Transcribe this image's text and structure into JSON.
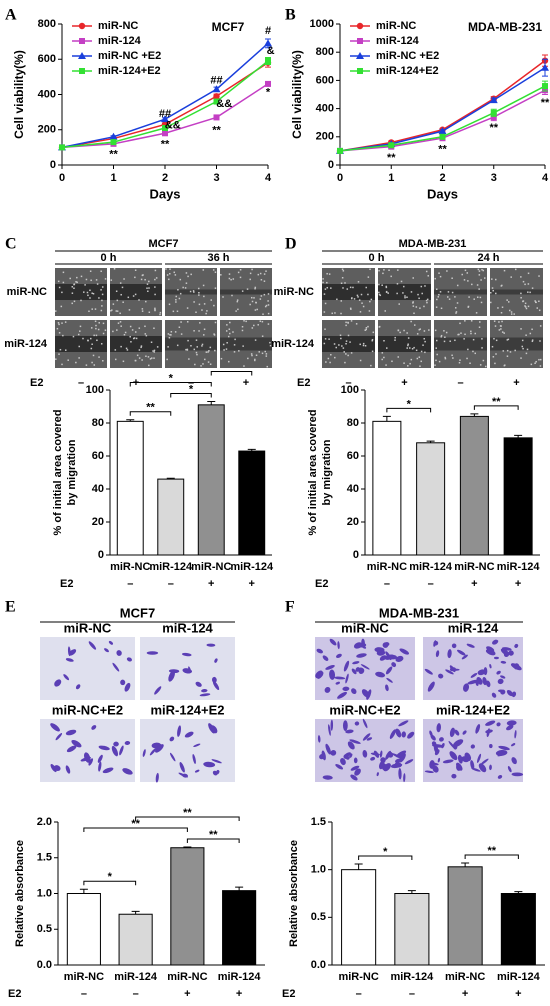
{
  "chart_data": [
    {
      "type": "line",
      "panel_label": "A",
      "title": "MCF7",
      "x_label": "Days",
      "y_label": "Cell viability(%)",
      "legend": "upper left",
      "x": [
        0,
        1,
        2,
        3,
        4
      ],
      "xlim": [
        0,
        4
      ],
      "xticks": [
        0,
        1,
        2,
        3,
        4
      ],
      "ylim": [
        0,
        800
      ],
      "yticks": [
        0,
        200,
        400,
        600,
        800
      ],
      "series": [
        {
          "name": "miR-NC",
          "color": "#e8262a",
          "marker": "circle",
          "values": [
            100,
            150,
            230,
            390,
            580
          ],
          "errors": [
            4,
            6,
            8,
            12,
            25
          ]
        },
        {
          "name": "miR-124",
          "color": "#c43fc4",
          "marker": "square",
          "values": [
            100,
            120,
            180,
            270,
            460
          ],
          "errors": [
            4,
            5,
            7,
            10,
            12
          ]
        },
        {
          "name": "miR-NC +E2",
          "color": "#1a3fdc",
          "marker": "triangle",
          "values": [
            100,
            160,
            260,
            430,
            690
          ],
          "errors": [
            4,
            6,
            8,
            12,
            25
          ]
        },
        {
          "name": "miR-124+E2",
          "color": "#33e033",
          "marker": "square",
          "values": [
            100,
            130,
            210,
            360,
            590
          ],
          "errors": [
            4,
            5,
            8,
            12,
            20
          ]
        }
      ],
      "annotations": [
        {
          "text": "**",
          "x": 1,
          "y": 60
        },
        {
          "text": "**",
          "x": 2,
          "y": 115
        },
        {
          "text": "**",
          "x": 3,
          "y": 195
        },
        {
          "text": "*",
          "x": 4,
          "y": 410
        },
        {
          "text": "##",
          "x": 2,
          "y": 290
        },
        {
          "text": "##",
          "x": 3,
          "y": 480
        },
        {
          "text": "#",
          "x": 4,
          "y": 760
        },
        {
          "text": "&&",
          "x": 2.15,
          "y": 225
        },
        {
          "text": "&&",
          "x": 3.15,
          "y": 345
        },
        {
          "text": "&",
          "x": 4.05,
          "y": 645
        }
      ]
    },
    {
      "type": "line",
      "panel_label": "B",
      "title": "MDA-MB-231",
      "x_label": "Days",
      "y_label": "Cell viability(%)",
      "legend": "upper left",
      "x": [
        0,
        1,
        2,
        3,
        4
      ],
      "xlim": [
        0,
        4
      ],
      "xticks": [
        0,
        1,
        2,
        3,
        4
      ],
      "ylim": [
        0,
        1000
      ],
      "yticks": [
        0,
        200,
        400,
        600,
        800,
        1000
      ],
      "series": [
        {
          "name": "miR-NC",
          "color": "#e8262a",
          "marker": "circle",
          "values": [
            100,
            160,
            250,
            470,
            740
          ],
          "errors": [
            5,
            8,
            10,
            15,
            40
          ]
        },
        {
          "name": "miR-124",
          "color": "#c43fc4",
          "marker": "square",
          "values": [
            100,
            130,
            190,
            340,
            530
          ],
          "errors": [
            5,
            8,
            10,
            25,
            30
          ]
        },
        {
          "name": "miR-NC +E2",
          "color": "#1a3fdc",
          "marker": "triangle",
          "values": [
            100,
            150,
            240,
            460,
            690
          ],
          "errors": [
            5,
            8,
            10,
            15,
            60
          ]
        },
        {
          "name": "miR-124+E2",
          "color": "#33e033",
          "marker": "square",
          "values": [
            100,
            140,
            200,
            370,
            560
          ],
          "errors": [
            5,
            8,
            10,
            25,
            35
          ]
        }
      ],
      "annotations": [
        {
          "text": "**",
          "x": 1,
          "y": 50
        },
        {
          "text": "**",
          "x": 2,
          "y": 110
        },
        {
          "text": "**",
          "x": 3,
          "y": 260
        },
        {
          "text": "**",
          "x": 4,
          "y": 440
        }
      ]
    },
    {
      "type": "bar",
      "y_label": [
        "% of initial area covered",
        "by migration"
      ],
      "categories": [
        "miR-NC",
        "miR-124",
        "miR-NC",
        "miR-124"
      ],
      "values": [
        81,
        46,
        91,
        63
      ],
      "errors": [
        1,
        0.5,
        2,
        1
      ],
      "colors": [
        "#ffffff",
        "#d9d9d9",
        "#909090",
        "#000000"
      ],
      "ylim": [
        0,
        100
      ],
      "yticks": [
        0,
        20,
        40,
        60,
        80,
        100
      ],
      "e2_label": "E2",
      "e2": [
        "–",
        "–",
        "+",
        "+"
      ],
      "brackets": [
        {
          "from": 0,
          "to": 1,
          "text": "**"
        },
        {
          "from": 1,
          "to": 2,
          "text": "*"
        },
        {
          "from": 0,
          "to": 2,
          "text": "*"
        },
        {
          "from": 2,
          "to": 3,
          "text": "**"
        }
      ]
    },
    {
      "type": "bar",
      "y_label": [
        "% of initial area covered",
        "by migration"
      ],
      "categories": [
        "miR-NC",
        "miR-124",
        "miR-NC",
        "miR-124"
      ],
      "values": [
        81,
        68,
        84,
        71
      ],
      "errors": [
        3,
        1,
        1.5,
        1.5
      ],
      "colors": [
        "#ffffff",
        "#d9d9d9",
        "#909090",
        "#000000"
      ],
      "ylim": [
        0,
        100
      ],
      "yticks": [
        0,
        20,
        40,
        60,
        80,
        100
      ],
      "e2_label": "E2",
      "e2": [
        "–",
        "–",
        "+",
        "+"
      ],
      "brackets": [
        {
          "from": 0,
          "to": 1,
          "text": "*"
        },
        {
          "from": 2,
          "to": 3,
          "text": "**"
        }
      ]
    },
    {
      "type": "bar",
      "y_label": [
        "Relative absorbance"
      ],
      "categories": [
        "miR-NC",
        "miR-124",
        "miR-NC",
        "miR-124"
      ],
      "values": [
        1.0,
        0.71,
        1.64,
        1.04
      ],
      "errors": [
        0.06,
        0.04,
        0.01,
        0.05
      ],
      "colors": [
        "#ffffff",
        "#d9d9d9",
        "#909090",
        "#000000"
      ],
      "ylim": [
        0,
        2
      ],
      "yticks": [
        {
          "value": 0,
          "label": "0.0"
        },
        0.5,
        {
          "value": 1,
          "label": "1.0"
        },
        1.5,
        {
          "value": 2,
          "label": "2.0"
        }
      ],
      "e2_label": "E2",
      "e2": [
        "–",
        "–",
        "+",
        "+"
      ],
      "brackets": [
        {
          "from": 0,
          "to": 1,
          "text": "*"
        },
        {
          "from": 2,
          "to": 3,
          "text": "**"
        },
        {
          "from": 0,
          "to": 2,
          "text": "**"
        },
        {
          "from": 1,
          "to": 3,
          "text": "**"
        }
      ]
    },
    {
      "type": "bar",
      "y_label": [
        "Relative absorbance"
      ],
      "categories": [
        "miR-NC",
        "miR-124",
        "miR-NC",
        "miR-124"
      ],
      "values": [
        1.0,
        0.75,
        1.03,
        0.75
      ],
      "errors": [
        0.06,
        0.03,
        0.04,
        0.02
      ],
      "colors": [
        "#ffffff",
        "#d9d9d9",
        "#909090",
        "#000000"
      ],
      "ylim": [
        0,
        1.5
      ],
      "yticks": [
        {
          "value": 0,
          "label": "0.0"
        },
        0.5,
        {
          "value": 1,
          "label": "1.0"
        },
        1.5
      ],
      "e2_label": "E2",
      "e2": [
        "–",
        "–",
        "+",
        "+"
      ],
      "brackets": [
        {
          "from": 0,
          "to": 1,
          "text": "*"
        },
        {
          "from": 2,
          "to": 3,
          "text": "**"
        }
      ]
    }
  ],
  "image_panels": [
    {
      "panel_label": "C",
      "title": "MCF7",
      "times": [
        "0 h",
        "36 h"
      ],
      "rows": [
        "miR-NC",
        "miR-124"
      ],
      "e2_label": "E2",
      "e2": [
        "–",
        "+",
        "–",
        "+"
      ]
    },
    {
      "panel_label": "D",
      "title": "MDA-MB-231",
      "times": [
        "0 h",
        "24 h"
      ],
      "rows": [
        "miR-NC",
        "miR-124"
      ],
      "e2_label": "E2",
      "e2": [
        "–",
        "+",
        "–",
        "+"
      ]
    },
    {
      "panel_label": "E",
      "title": "MCF7",
      "labels": [
        "miR-NC",
        "miR-124",
        "miR-NC+E2",
        "miR-124+E2"
      ]
    },
    {
      "panel_label": "F",
      "title": "MDA-MB-231",
      "labels": [
        "miR-NC",
        "miR-124",
        "miR-NC+E2",
        "miR-124+E2"
      ]
    }
  ]
}
